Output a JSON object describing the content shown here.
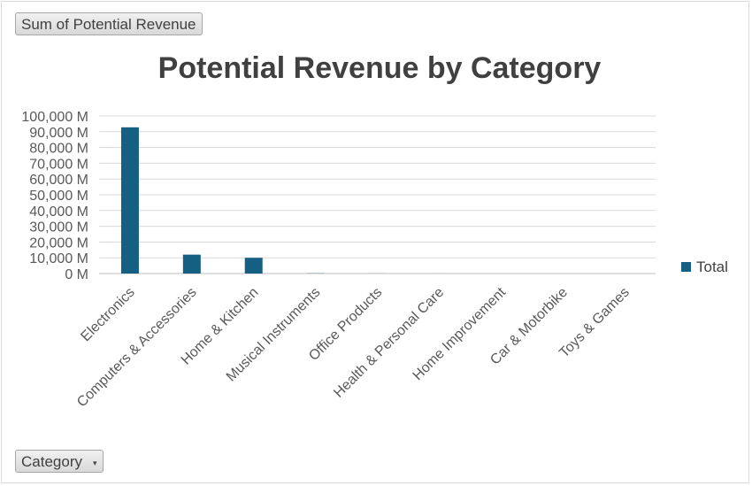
{
  "field_buttons": {
    "value_field": "Sum of Potential Revenue",
    "axis_field": "Category"
  },
  "chart_data": {
    "type": "bar",
    "title": "Potential Revenue by Category",
    "xlabel": "",
    "ylabel": "",
    "categories": [
      "Electronics",
      "Computers & Accessories",
      "Home & Kitchen",
      "Musical Instruments",
      "Office Products",
      "Health & Personal Care",
      "Home Improvement",
      "Car & Motorbike",
      "Toys & Games"
    ],
    "series": [
      {
        "name": "Total",
        "color": "#156082",
        "values": [
          92800,
          12000,
          10000,
          150,
          50,
          20,
          10,
          5,
          2
        ]
      }
    ],
    "ylim": [
      0,
      100000
    ],
    "yticks": [
      0,
      10000,
      20000,
      30000,
      40000,
      50000,
      60000,
      70000,
      80000,
      90000,
      100000
    ],
    "ytick_labels": [
      "0 M",
      "10,000 M",
      "20,000 M",
      "30,000 M",
      "40,000 M",
      "50,000 M",
      "60,000 M",
      "70,000 M",
      "80,000 M",
      "90,000 M",
      "100,000 M"
    ],
    "grid": true,
    "legend": "right"
  }
}
